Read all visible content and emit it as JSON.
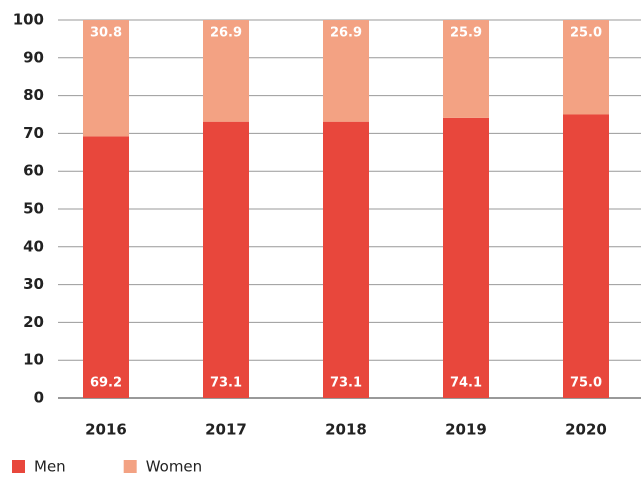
{
  "chart_data": {
    "type": "stacked-bar",
    "categories": [
      "2016",
      "2017",
      "2018",
      "2019",
      "2020"
    ],
    "series": [
      {
        "name": "Men",
        "color": "#e8473c",
        "values": [
          69.2,
          73.1,
          73.1,
          74.1,
          75
        ],
        "value_labels": [
          "69.2",
          "73.1",
          "73.1",
          "74.1",
          "75.0"
        ]
      },
      {
        "name": "Women",
        "color": "#f3a283",
        "values": [
          30.8,
          26.9,
          26.9,
          25.9,
          25
        ],
        "value_labels": [
          "30.8",
          "26.9",
          "26.9",
          "25.9",
          "25.0"
        ]
      }
    ],
    "ylim": [
      0,
      100
    ],
    "yticks": [
      0,
      10,
      20,
      30,
      40,
      50,
      60,
      70,
      80,
      90,
      100
    ],
    "grid": true
  }
}
